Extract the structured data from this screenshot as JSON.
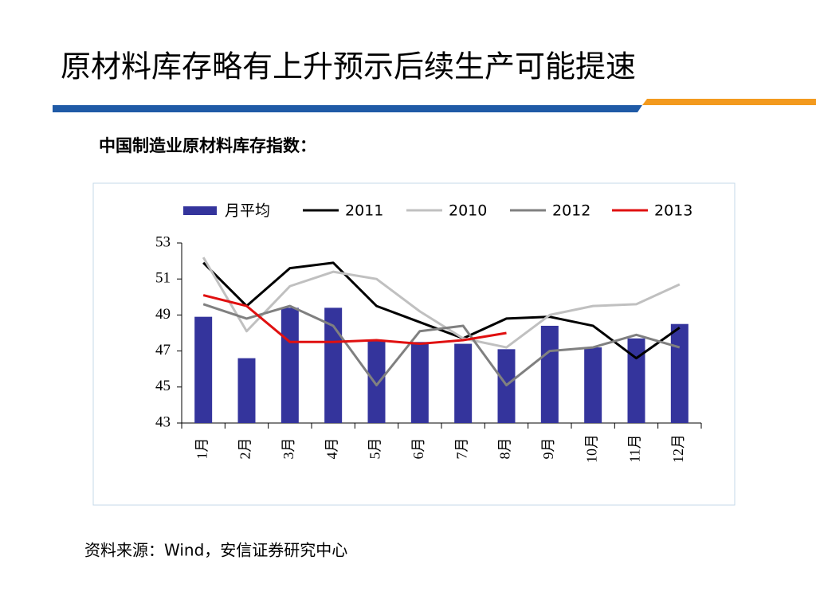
{
  "header": {
    "title": "原材料库存略有上升预示后续生产可能提速"
  },
  "subtitle": "中国制造业原材料库存指数：",
  "source": "资料来源：Wind，安信证券研究中心",
  "chart_data": {
    "type": "combo",
    "categories": [
      "1月",
      "2月",
      "3月",
      "4月",
      "5月",
      "6月",
      "7月",
      "8月",
      "9月",
      "10月",
      "11月",
      "12月"
    ],
    "ylim": [
      43,
      53
    ],
    "yticks": [
      43,
      45,
      47,
      49,
      51,
      53
    ],
    "legend": "top",
    "series": [
      {
        "name": "月平均",
        "type": "bar",
        "color": "#34349c",
        "values": [
          48.9,
          46.6,
          49.4,
          49.4,
          47.6,
          47.5,
          47.4,
          47.1,
          48.4,
          47.2,
          47.7,
          48.5
        ]
      },
      {
        "name": "2011",
        "type": "line",
        "color": "#000000",
        "values": [
          51.9,
          49.5,
          51.6,
          51.9,
          49.5,
          48.6,
          47.7,
          48.8,
          48.9,
          48.4,
          46.6,
          48.3
        ]
      },
      {
        "name": "2010",
        "type": "line",
        "color": "#c0c0c0",
        "values": [
          52.2,
          48.1,
          50.6,
          51.4,
          51.0,
          49.2,
          47.7,
          47.2,
          49.0,
          49.5,
          49.6,
          50.7
        ]
      },
      {
        "name": "2012",
        "type": "line",
        "color": "#808080",
        "values": [
          49.6,
          48.8,
          49.5,
          48.4,
          45.1,
          48.1,
          48.4,
          45.1,
          47.0,
          47.2,
          47.9,
          47.2
        ]
      },
      {
        "name": "2013",
        "type": "line",
        "color": "#e01010",
        "values": [
          50.1,
          49.5,
          47.5,
          47.5,
          47.6,
          47.4,
          47.6,
          48.0,
          null,
          null,
          null,
          null
        ]
      }
    ]
  }
}
